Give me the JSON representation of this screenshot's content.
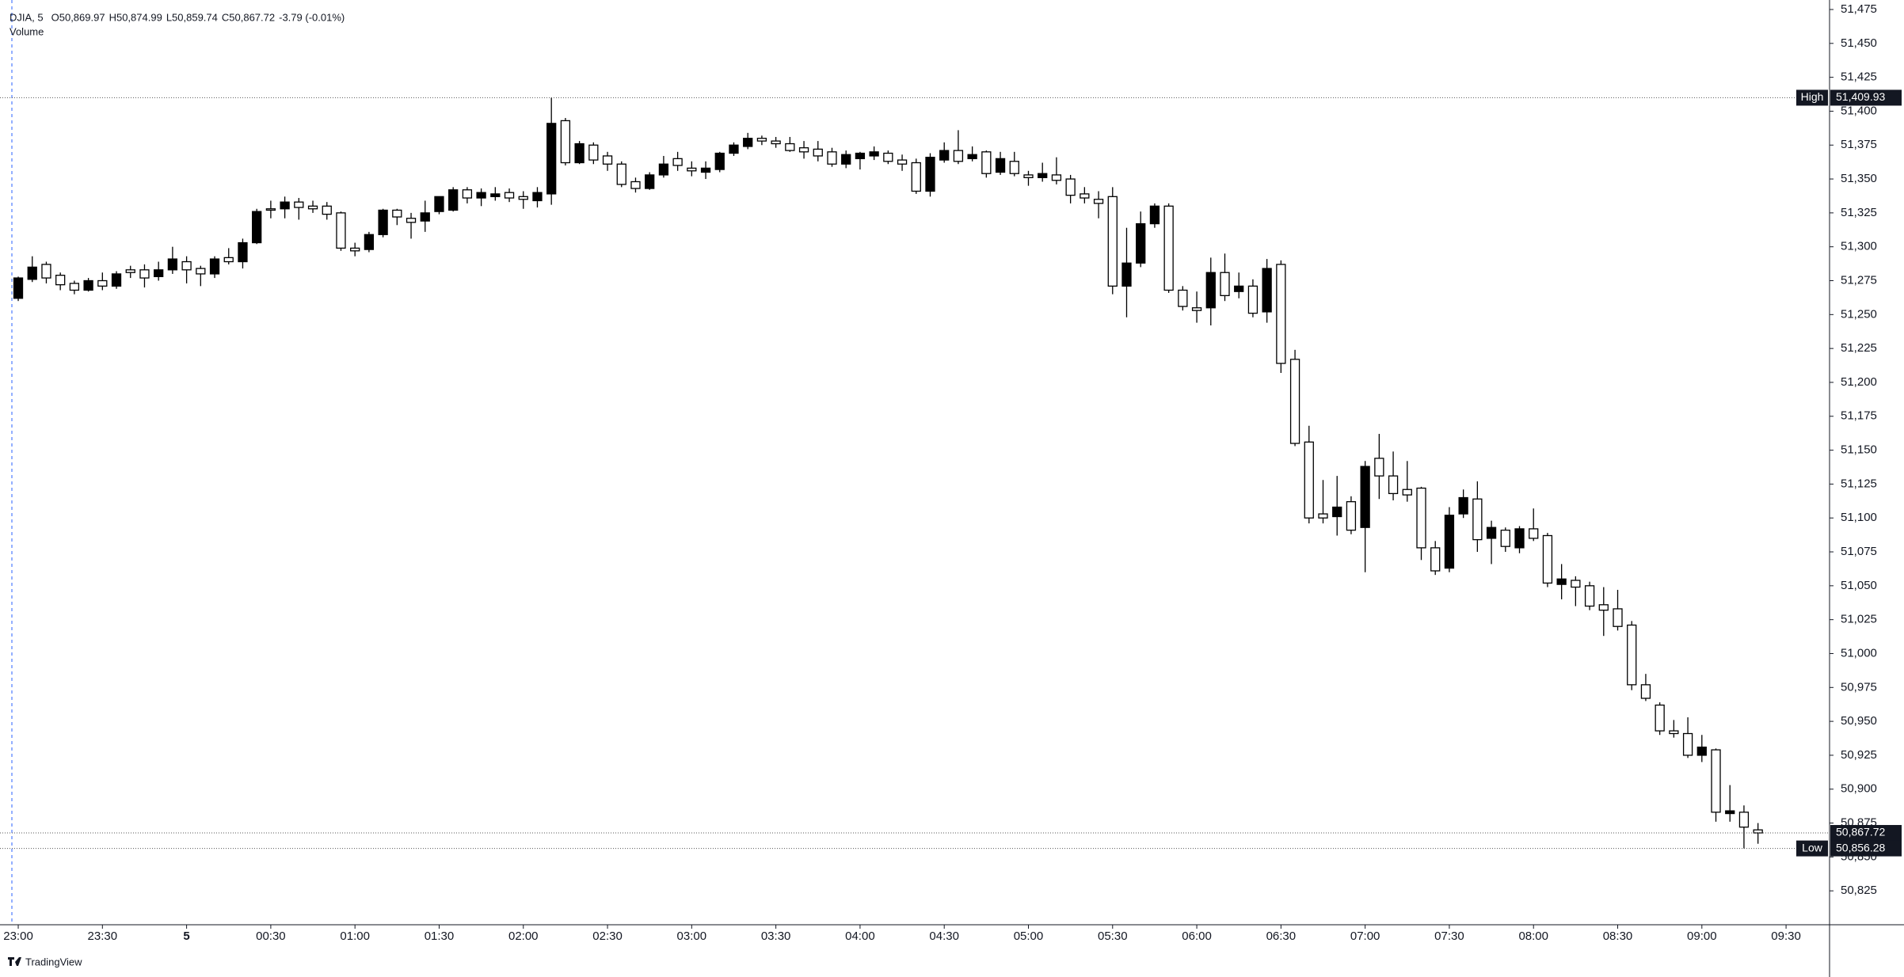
{
  "chart_data": {
    "type": "candlestick",
    "header": [
      "DJIA, 5",
      "O50,869.97",
      "H50,874.99",
      "L50,859.74",
      "C50,867.72",
      "-3.79 (-0.01%)"
    ],
    "subheader": "Volume",
    "footer": "TradingView",
    "up_color": "#000000",
    "down_color": "#ffffff",
    "outline_color": "#000000",
    "xlim": [
      -1.3,
      129.1
    ],
    "xticks": [
      {
        "value": 0,
        "label": "23:00"
      },
      {
        "value": 6,
        "label": "23:30"
      },
      {
        "value": 12,
        "label": "5"
      },
      {
        "value": 18,
        "label": "00:30"
      },
      {
        "value": 24,
        "label": "01:00"
      },
      {
        "value": 30,
        "label": "01:30"
      },
      {
        "value": 36,
        "label": "02:00"
      },
      {
        "value": 42,
        "label": "02:30"
      },
      {
        "value": 48,
        "label": "03:00"
      },
      {
        "value": 54,
        "label": "03:30"
      },
      {
        "value": 60,
        "label": "04:00"
      },
      {
        "value": 66,
        "label": "04:30"
      },
      {
        "value": 72,
        "label": "05:00"
      },
      {
        "value": 78,
        "label": "05:30"
      },
      {
        "value": 84,
        "label": "06:00"
      },
      {
        "value": 90,
        "label": "06:30"
      },
      {
        "value": 96,
        "label": "07:00"
      },
      {
        "value": 102,
        "label": "07:30"
      },
      {
        "value": 108,
        "label": "08:00"
      },
      {
        "value": 114,
        "label": "08:30"
      },
      {
        "value": 120,
        "label": "09:00"
      },
      {
        "value": 126,
        "label": "09:30"
      }
    ],
    "ylim": [
      50800,
      51482
    ],
    "yticks": [
      {
        "value": 51475,
        "label": "51,475"
      },
      {
        "value": 51450,
        "label": "51,450"
      },
      {
        "value": 51425,
        "label": "51,425"
      },
      {
        "value": 51400,
        "label": "51,400"
      },
      {
        "value": 51375,
        "label": "51,375"
      },
      {
        "value": 51350,
        "label": "51,350"
      },
      {
        "value": 51325,
        "label": "51,325"
      },
      {
        "value": 51300,
        "label": "51,300"
      },
      {
        "value": 51275,
        "label": "51,275"
      },
      {
        "value": 51250,
        "label": "51,250"
      },
      {
        "value": 51225,
        "label": "51,225"
      },
      {
        "value": 51200,
        "label": "51,200"
      },
      {
        "value": 51175,
        "label": "51,175"
      },
      {
        "value": 51150,
        "label": "51,150"
      },
      {
        "value": 51125,
        "label": "51,125"
      },
      {
        "value": 51100,
        "label": "51,100"
      },
      {
        "value": 51075,
        "label": "51,075"
      },
      {
        "value": 51050,
        "label": "51,050"
      },
      {
        "value": 51025,
        "label": "51,025"
      },
      {
        "value": 51000,
        "label": "51,000"
      },
      {
        "value": 50975,
        "label": "50,975"
      },
      {
        "value": 50950,
        "label": "50,950"
      },
      {
        "value": 50925,
        "label": "50,925"
      },
      {
        "value": 50900,
        "label": "50,900"
      },
      {
        "value": 50875,
        "label": "50,875"
      },
      {
        "value": 50850,
        "label": "50,850"
      },
      {
        "value": 50825,
        "label": "50,825"
      }
    ],
    "markers": [
      {
        "tag": "High",
        "value": 51409.93,
        "label": "51,409.93"
      },
      {
        "value": 50867.72,
        "label": "50,867.72"
      },
      {
        "tag": "Low",
        "value": 50856.28,
        "label": "50,856.28"
      }
    ],
    "open": [
      51262,
      51276,
      51287,
      51279,
      51273,
      51268,
      51275,
      51271,
      51283,
      51283,
      51278,
      51283,
      51289,
      51284,
      51280,
      51292,
      51289,
      51303,
      51328,
      51328,
      51333,
      51330,
      51330,
      51325,
      51299,
      51298,
      51309,
      51327,
      51321,
      51319,
      51326,
      51327,
      51342,
      51336,
      51337,
      51340,
      51337,
      51334,
      51339,
      51393,
      51362,
      51375,
      51367,
      51361,
      51348,
      51343,
      51353,
      51365,
      51358,
      51355,
      51357,
      51369,
      51374,
      51380,
      51378,
      51376,
      51373,
      51372,
      51370,
      51361,
      51365,
      51367,
      51369,
      51364,
      51362,
      51341,
      51364,
      51371,
      51365,
      51370,
      51355,
      51363,
      51353,
      51351,
      51353,
      51350,
      51339,
      51335,
      51337,
      51271,
      51288,
      51317,
      51330,
      51268,
      51255,
      51255,
      51281,
      51267,
      51271,
      51252,
      51287,
      51217,
      51156,
      51103,
      51101,
      51112,
      51093,
      51144,
      51131,
      51121,
      51122,
      51078,
      51063,
      51103,
      51114,
      51085,
      51091,
      51078,
      51092,
      51087,
      51051,
      51054,
      51050,
      51036,
      51033,
      51021,
      50977,
      50962,
      50943,
      50941,
      50925,
      50929,
      50882,
      50883,
      50869.97
    ],
    "high": [
      51278,
      51293,
      51289,
      51281,
      51275,
      51277,
      51281,
      51282,
      51286,
      51287,
      51289,
      51300,
      51293,
      51286,
      51293,
      51299,
      51306,
      51328,
      51334,
      51337,
      51336,
      51334,
      51333,
      51326,
      51303,
      51311,
      51328,
      51328,
      51325,
      51334,
      51337,
      51344,
      51344,
      51343,
      51344,
      51343,
      51341,
      51344,
      51409.93,
      51395,
      51378,
      51377,
      51370,
      51363,
      51351,
      51355,
      51367,
      51370,
      51363,
      51363,
      51370,
      51377,
      51384,
      51382,
      51381,
      51381,
      51378,
      51378,
      51373,
      51371,
      51370,
      51374,
      51371,
      51368,
      51365,
      51369,
      51377,
      51386,
      51374,
      51371,
      51370,
      51370,
      51356,
      51362,
      51366,
      51353,
      51344,
      51341,
      51344,
      51314,
      51326,
      51332,
      51332,
      51271,
      51267,
      51292,
      51295,
      51281,
      51276,
      51291,
      51290,
      51224,
      51168,
      51128,
      51131,
      51116,
      51142,
      51162,
      51149,
      51142,
      51123,
      51083,
      51108,
      51121,
      51127,
      51098,
      51093,
      51094,
      51107,
      51089,
      51066,
      51057,
      51053,
      51049,
      51047,
      51024,
      50985,
      50964,
      50951,
      50953,
      50940,
      50930,
      50903,
      50888,
      50874.99
    ],
    "low": [
      51260,
      51274,
      51273,
      51268,
      51265,
      51267,
      51268,
      51269,
      51277,
      51270,
      51275,
      51280,
      51273,
      51271,
      51277,
      51287,
      51284,
      51302,
      51321,
      51321,
      51320,
      51325,
      51320,
      51297,
      51293,
      51296,
      51307,
      51316,
      51306,
      51311,
      51324,
      51326,
      51332,
      51330,
      51334,
      51333,
      51328,
      51329,
      51331,
      51360,
      51361,
      51361,
      51356,
      51344,
      51340,
      51342,
      51351,
      51356,
      51352,
      51350,
      51355,
      51367,
      51372,
      51375,
      51373,
      51370,
      51365,
      51363,
      51359,
      51358,
      51357,
      51364,
      51361,
      51356,
      51339,
      51337,
      51362,
      51361,
      51363,
      51351,
      51353,
      51352,
      51345,
      51348,
      51346,
      51332,
      51332,
      51321,
      51265,
      51248,
      51285,
      51314,
      51266,
      51253,
      51244,
      51242,
      51260,
      51262,
      51248,
      51244,
      51207,
      51153,
      51096,
      51096,
      51087,
      51088,
      51060,
      51114,
      51113,
      51112,
      51069,
      51058,
      51060,
      51100,
      51075,
      51066,
      51075,
      51074,
      51083,
      51049,
      51040,
      51035,
      51032,
      51013,
      51017,
      50973,
      50965,
      50940,
      50938,
      50923,
      50920,
      50876,
      50876,
      50856.28,
      50859.74
    ],
    "close": [
      51277,
      51285,
      51277,
      51272,
      51268,
      51275,
      51271,
      51280,
      51281,
      51277,
      51283,
      51291,
      51283,
      51280,
      51291,
      51289,
      51303,
      51326,
      51327,
      51333,
      51329,
      51328,
      51324,
      51299,
      51297,
      51309,
      51327,
      51322,
      51318,
      51325,
      51337,
      51342,
      51336,
      51340,
      51339,
      51336,
      51335,
      51340,
      51391,
      51362,
      51376,
      51364,
      51361,
      51346,
      51343,
      51353,
      51361,
      51360,
      51356,
      51358,
      51369,
      51375,
      51380,
      51378,
      51376,
      51371,
      51370,
      51367,
      51361,
      51368,
      51369,
      51370,
      51363,
      51361,
      51341,
      51366,
      51371,
      51363,
      51368,
      51354,
      51365,
      51354,
      51351,
      51354,
      51349,
      51338,
      51336,
      51332,
      51271,
      51288,
      51317,
      51330,
      51268,
      51256,
      51253,
      51281,
      51264,
      51271,
      51251,
      51284,
      51214,
      51155,
      51100,
      51100,
      51108,
      51091,
      51138,
      51131,
      51118,
      51117,
      51078,
      51061,
      51102,
      51115,
      51084,
      51093,
      51079,
      51092,
      51085,
      51052,
      51055,
      51049,
      51035,
      51032,
      51020,
      50977,
      50967,
      50943,
      50941,
      50925,
      50931,
      50883,
      50884,
      50872,
      50867.72
    ]
  }
}
